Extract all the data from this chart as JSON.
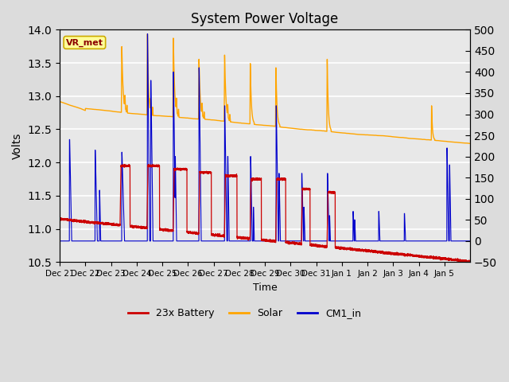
{
  "title": "System Power Voltage",
  "xlabel": "Time",
  "ylabel_left": "Volts",
  "ylim_left": [
    10.5,
    14.0
  ],
  "ylim_right": [
    -50,
    500
  ],
  "yticks_left": [
    10.5,
    11.0,
    11.5,
    12.0,
    12.5,
    13.0,
    13.5,
    14.0
  ],
  "yticks_right": [
    -50,
    0,
    50,
    100,
    150,
    200,
    250,
    300,
    350,
    400,
    450,
    500
  ],
  "xtick_labels": [
    "Dec 21",
    "Dec 22",
    "Dec 23",
    "Dec 24",
    "Dec 25",
    "Dec 26",
    "Dec 27",
    "Dec 28",
    "Dec 29",
    "Dec 30",
    "Dec 31",
    "Jan 1",
    "Jan 2",
    "Jan 3",
    "Jan 4",
    "Jan 5"
  ],
  "legend_labels": [
    "23x Battery",
    "Solar",
    "CM1_in"
  ],
  "legend_colors": [
    "#cc0000",
    "#ffa500",
    "#0000cc"
  ],
  "vr_met_label": "VR_met",
  "background_color": "#dcdcdc",
  "plot_bg_color": "#f0f0f0",
  "grid_color": "#ffffff",
  "title_fontsize": 12,
  "annotation_box_color": "#ffff99",
  "annotation_box_edge": "#ccaa00",
  "figsize": [
    6.4,
    4.8
  ],
  "dpi": 100
}
